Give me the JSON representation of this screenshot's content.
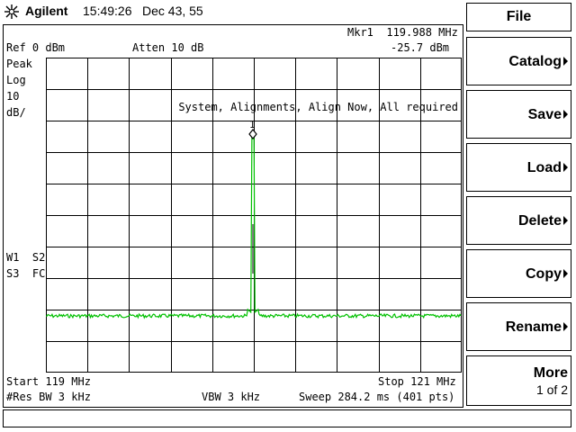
{
  "header": {
    "brand": "Agilent",
    "time": "15:49:26",
    "date": "Dec 43,  55"
  },
  "screen": {
    "marker": "Mkr1  119.988 MHz",
    "marker_level": "-25.7 dBm",
    "ref_level": "Ref 0 dBm",
    "attenuation": "Atten 10 dB",
    "detector": "Peak",
    "scale_type": "Log",
    "scale_value": "10",
    "scale_unit": "dB/",
    "alignment_msg": "System, Alignments, Align Now, All required",
    "marker_label": "1",
    "trace_flags_1": "W1  S2",
    "trace_flags_2": "S3  FC",
    "start_freq": "Start 119 MHz",
    "stop_freq": "Stop 121 MHz",
    "res_bw": "#Res BW 3 kHz",
    "vbw": "VBW 3 kHz",
    "sweep": "Sweep 284.2 ms (401 pts)",
    "trace_color": "#00c000",
    "marker_color": "#000000"
  },
  "softkeys": {
    "title": "File",
    "items": [
      {
        "label": "Catalog",
        "submenu": true
      },
      {
        "label": "Save",
        "submenu": true
      },
      {
        "label": "Load",
        "submenu": true
      },
      {
        "label": "Delete",
        "submenu": true
      },
      {
        "label": "Copy",
        "submenu": true
      },
      {
        "label": "Rename",
        "submenu": true
      }
    ],
    "more": {
      "label": "More",
      "page": "1 of 2"
    }
  },
  "status_line": ""
}
